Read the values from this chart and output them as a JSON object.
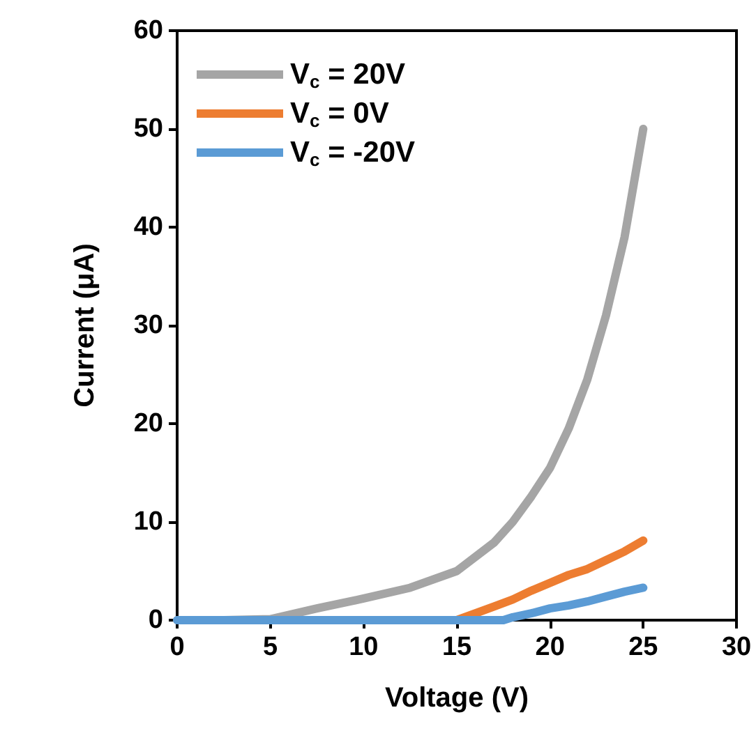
{
  "chart_data": {
    "type": "line",
    "xlabel": "Voltage (V)",
    "ylabel": "Current (μA)",
    "xlim": [
      0,
      30
    ],
    "xticks": [
      0,
      5,
      10,
      15,
      20,
      25,
      30
    ],
    "ylim": [
      0,
      60
    ],
    "yticks": [
      0,
      10,
      20,
      30,
      40,
      50,
      60
    ],
    "grid": false,
    "legend": "top left",
    "marker": "none",
    "line_style": "solid",
    "series": [
      {
        "name": "V$_{c}$ = 20V",
        "color": "#a5a5a5",
        "x": [
          0,
          2.5,
          5,
          7.5,
          10,
          12.5,
          15,
          17,
          18,
          19,
          20,
          21,
          22,
          23,
          24,
          24.5,
          25
        ],
        "values": [
          0,
          0,
          0.1,
          1.2,
          2.2,
          3.3,
          5,
          7.9,
          10,
          12.6,
          15.5,
          19.5,
          24.5,
          31,
          39,
          44.5,
          50
        ]
      },
      {
        "name": "V$_{c}$ = 0V",
        "color": "#ed7d31",
        "x": [
          10,
          15,
          17,
          18,
          19,
          20,
          21,
          22,
          23,
          24,
          25
        ],
        "values": [
          0,
          0,
          1.4,
          2.1,
          3,
          3.8,
          4.6,
          5.2,
          6.1,
          7,
          8.1
        ]
      },
      {
        "name": "V$_{c}$ = -20V",
        "color": "#5b9bd5",
        "x": [
          0,
          5,
          10,
          15,
          17.5,
          18,
          19,
          20,
          21,
          22,
          23,
          24,
          25
        ],
        "values": [
          0,
          0,
          0,
          0,
          0,
          0.3,
          0.7,
          1.2,
          1.5,
          1.9,
          2.4,
          2.9,
          3.3
        ]
      }
    ]
  }
}
